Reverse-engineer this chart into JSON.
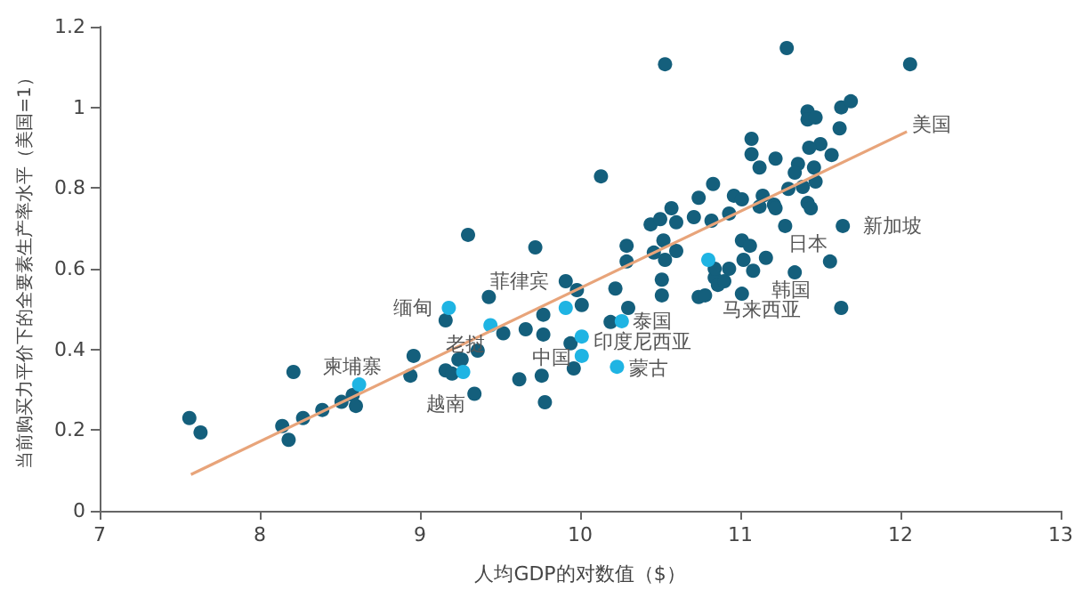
{
  "chart_data": {
    "type": "scatter",
    "xlabel": "人均GDP的对数值（$）",
    "ylabel": "当前购买力平价下的全要素生产率水平（美国=1）",
    "xlim": [
      7,
      13
    ],
    "xticks": [
      7,
      8,
      9,
      10,
      11,
      12,
      13
    ],
    "ylim": [
      0,
      1.2
    ],
    "yticks": [
      0,
      0.2,
      0.4,
      0.6,
      0.8,
      1.0,
      1.2
    ],
    "grid": false,
    "marker": "circle",
    "series": [
      {
        "color": "#145f7c",
        "x": [
          7.56,
          7.63,
          8.21,
          8.14,
          8.18,
          8.27,
          8.39,
          8.51,
          8.58,
          8.6,
          8.96,
          8.94,
          9.16,
          9.16,
          9.2,
          9.24,
          10.53,
          10.13,
          9.3,
          9.72,
          9.43,
          9.52,
          9.66,
          9.77,
          9.77,
          9.91,
          9.98,
          10.01,
          9.94,
          9.96,
          9.76,
          9.62,
          9.78,
          9.36,
          9.26,
          9.34,
          10.22,
          10.19,
          10.3,
          10.29,
          10.29,
          10.46,
          10.44,
          10.5,
          10.57,
          10.6,
          10.52,
          10.53,
          10.6,
          10.51,
          10.51,
          10.71,
          10.74,
          10.83,
          10.82,
          10.93,
          10.96,
          11.01,
          11.07,
          11.07,
          11.12,
          11.12,
          11.01,
          11.06,
          11.02,
          11.08,
          11.01,
          10.74,
          10.78,
          10.84,
          10.86,
          10.9,
          10.93,
          10.84,
          11.29,
          12.06,
          11.42,
          11.42,
          11.47,
          11.63,
          11.69,
          11.62,
          11.5,
          11.43,
          11.57,
          11.22,
          11.36,
          11.34,
          11.46,
          11.47,
          11.39,
          11.3,
          11.14,
          11.21,
          11.42,
          11.44,
          11.28,
          11.34,
          11.56,
          11.63,
          11.16,
          11.22,
          11.64
        ],
        "values": [
          0.23,
          0.194,
          0.344,
          0.21,
          0.176,
          0.23,
          0.25,
          0.27,
          0.287,
          0.26,
          0.384,
          0.335,
          0.472,
          0.348,
          0.34,
          0.375,
          1.107,
          0.829,
          0.684,
          0.653,
          0.53,
          0.44,
          0.45,
          0.437,
          0.486,
          0.569,
          0.547,
          0.51,
          0.415,
          0.353,
          0.335,
          0.326,
          0.269,
          0.397,
          0.375,
          0.29,
          0.551,
          0.468,
          0.503,
          0.657,
          0.618,
          0.64,
          0.71,
          0.723,
          0.75,
          0.715,
          0.67,
          0.622,
          0.644,
          0.573,
          0.534,
          0.728,
          0.776,
          0.81,
          0.719,
          0.737,
          0.781,
          0.772,
          0.922,
          0.884,
          0.851,
          0.754,
          0.67,
          0.657,
          0.622,
          0.595,
          0.538,
          0.53,
          0.534,
          0.578,
          0.56,
          0.569,
          0.6,
          0.6,
          1.147,
          1.107,
          0.99,
          0.97,
          0.975,
          1.0,
          1.015,
          0.948,
          0.909,
          0.9,
          0.882,
          0.873,
          0.86,
          0.838,
          0.851,
          0.816,
          0.803,
          0.798,
          0.781,
          0.759,
          0.763,
          0.75,
          0.706,
          0.591,
          0.618,
          0.503,
          0.627,
          0.75,
          0.706
        ]
      },
      {
        "color": "#1fb4e3",
        "x": [
          9.18,
          9.44,
          8.62,
          9.27,
          9.91,
          10.26,
          10.01,
          10.01,
          10.23,
          10.8
        ],
        "values": [
          0.503,
          0.46,
          0.313,
          0.344,
          0.503,
          0.47,
          0.432,
          0.384,
          0.357,
          0.622
        ]
      },
      {
        "type": "line",
        "color": "#e8a47a",
        "marker": "none",
        "x": [
          7.57,
          12.04
        ],
        "values": [
          0.09,
          0.94
        ]
      }
    ],
    "annotations": [
      {
        "text": "缅甸",
        "x": 9.18,
        "y": 0.503
      },
      {
        "text": "老挝",
        "x": 9.44,
        "y": 0.46
      },
      {
        "text": "柬埔寨",
        "x": 8.62,
        "y": 0.313
      },
      {
        "text": "越南",
        "x": 9.27,
        "y": 0.344
      },
      {
        "text": "菲律宾",
        "x": 9.91,
        "y": 0.503
      },
      {
        "text": "泰国",
        "x": 10.26,
        "y": 0.47
      },
      {
        "text": "印度尼西亚",
        "x": 10.01,
        "y": 0.432
      },
      {
        "text": "中国",
        "x": 10.01,
        "y": 0.384
      },
      {
        "text": "蒙古",
        "x": 10.23,
        "y": 0.357
      },
      {
        "text": "马来西亚",
        "x": 10.8,
        "y": 0.622
      },
      {
        "text": "韩国",
        "x": 11.16,
        "y": 0.627
      },
      {
        "text": "日本",
        "x": 11.22,
        "y": 0.75
      },
      {
        "text": "新加坡",
        "x": 11.64,
        "y": 0.706
      },
      {
        "text": "美国",
        "x": 12.04,
        "y": 0.94
      }
    ]
  }
}
